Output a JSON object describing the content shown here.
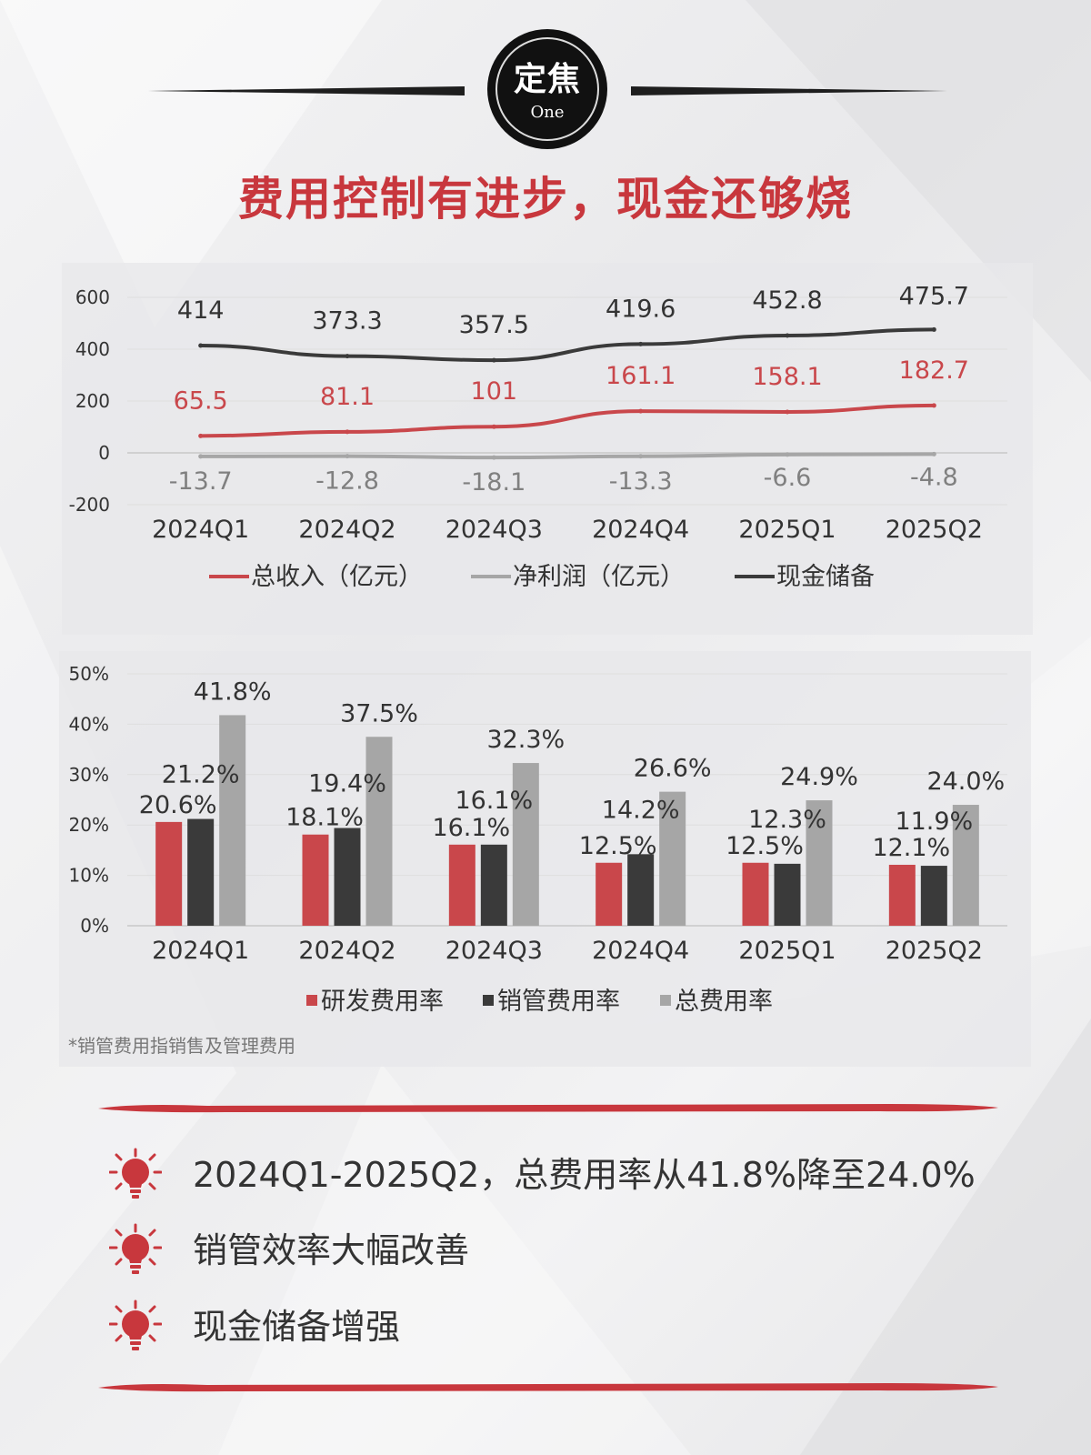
{
  "header": {
    "logo_main": "定焦",
    "logo_sub": "One"
  },
  "headline": "费用控制有进步，现金还够烧",
  "colors": {
    "red": "#c9474b",
    "gray": "#a6a6a6",
    "dark": "#3a3a3a",
    "title_red": "#c8373d"
  },
  "chart_data": [
    {
      "type": "line",
      "categories": [
        "2024Q1",
        "2024Q2",
        "2024Q3",
        "2024Q4",
        "2025Q1",
        "2025Q2"
      ],
      "ylim": [
        -200,
        600
      ],
      "yticks": [
        -200,
        0,
        200,
        400,
        600
      ],
      "yticks_labels": [
        "-200",
        "0",
        "200",
        "400",
        "600"
      ],
      "grid": true,
      "legend_position": "bottom",
      "series": [
        {
          "name": "总收入（亿元）",
          "values": [
            65.5,
            81.1,
            101,
            161.1,
            158.1,
            182.7
          ],
          "labels": [
            "65.5",
            "81.1",
            "101",
            "161.1",
            "158.1",
            "182.7"
          ],
          "color": "#c9474b",
          "label_color": "#c9474b"
        },
        {
          "name": "净利润（亿元）",
          "values": [
            -13.7,
            -12.8,
            -18.1,
            -13.3,
            -6.6,
            -4.8
          ],
          "labels": [
            "-13.7",
            "-12.8",
            "-18.1",
            "-13.3",
            "-6.6",
            "-4.8"
          ],
          "color": "#a6a6a6",
          "label_color": "#808080"
        },
        {
          "name": "现金储备",
          "values": [
            414,
            373.3,
            357.5,
            419.6,
            452.8,
            475.7
          ],
          "labels": [
            "414",
            "373.3",
            "357.5",
            "419.6",
            "452.8",
            "475.7"
          ],
          "color": "#3a3a3a",
          "label_color": "#333333"
        }
      ]
    },
    {
      "type": "bar",
      "categories": [
        "2024Q1",
        "2024Q2",
        "2024Q3",
        "2024Q4",
        "2025Q1",
        "2025Q2"
      ],
      "ylim": [
        0,
        50
      ],
      "yticks": [
        0,
        10,
        20,
        30,
        40,
        50
      ],
      "yticks_labels": [
        "0%",
        "10%",
        "20%",
        "30%",
        "40%",
        "50%"
      ],
      "grid": true,
      "legend_position": "bottom",
      "series": [
        {
          "name": "研发费用率",
          "values": [
            20.6,
            18.1,
            16.1,
            12.5,
            12.5,
            12.1
          ],
          "labels": [
            "20.6%",
            "18.1%",
            "16.1%",
            "12.5%",
            "12.5%",
            "12.1%"
          ],
          "color": "#c9474b"
        },
        {
          "name": "销管费用率",
          "values": [
            21.2,
            19.4,
            16.1,
            14.2,
            12.3,
            11.9
          ],
          "labels": [
            "21.2%",
            "19.4%",
            "16.1%",
            "14.2%",
            "12.3%",
            "11.9%"
          ],
          "color": "#3a3a3a"
        },
        {
          "name": "总费用率",
          "values": [
            41.8,
            37.5,
            32.3,
            26.6,
            24.9,
            24.0
          ],
          "labels": [
            "41.8%",
            "37.5%",
            "32.3%",
            "26.6%",
            "24.9%",
            "24.0%"
          ],
          "color": "#a6a6a6"
        }
      ]
    }
  ],
  "footnote": "*销管费用指销售及管理费用",
  "bullets": [
    {
      "icon": "lightbulb-icon",
      "text": "2024Q1-2025Q2，总费用率从41.8%降至24.0%"
    },
    {
      "icon": "lightbulb-icon",
      "text": "销管效率大幅改善"
    },
    {
      "icon": "lightbulb-icon",
      "text": "现金储备增强"
    }
  ]
}
